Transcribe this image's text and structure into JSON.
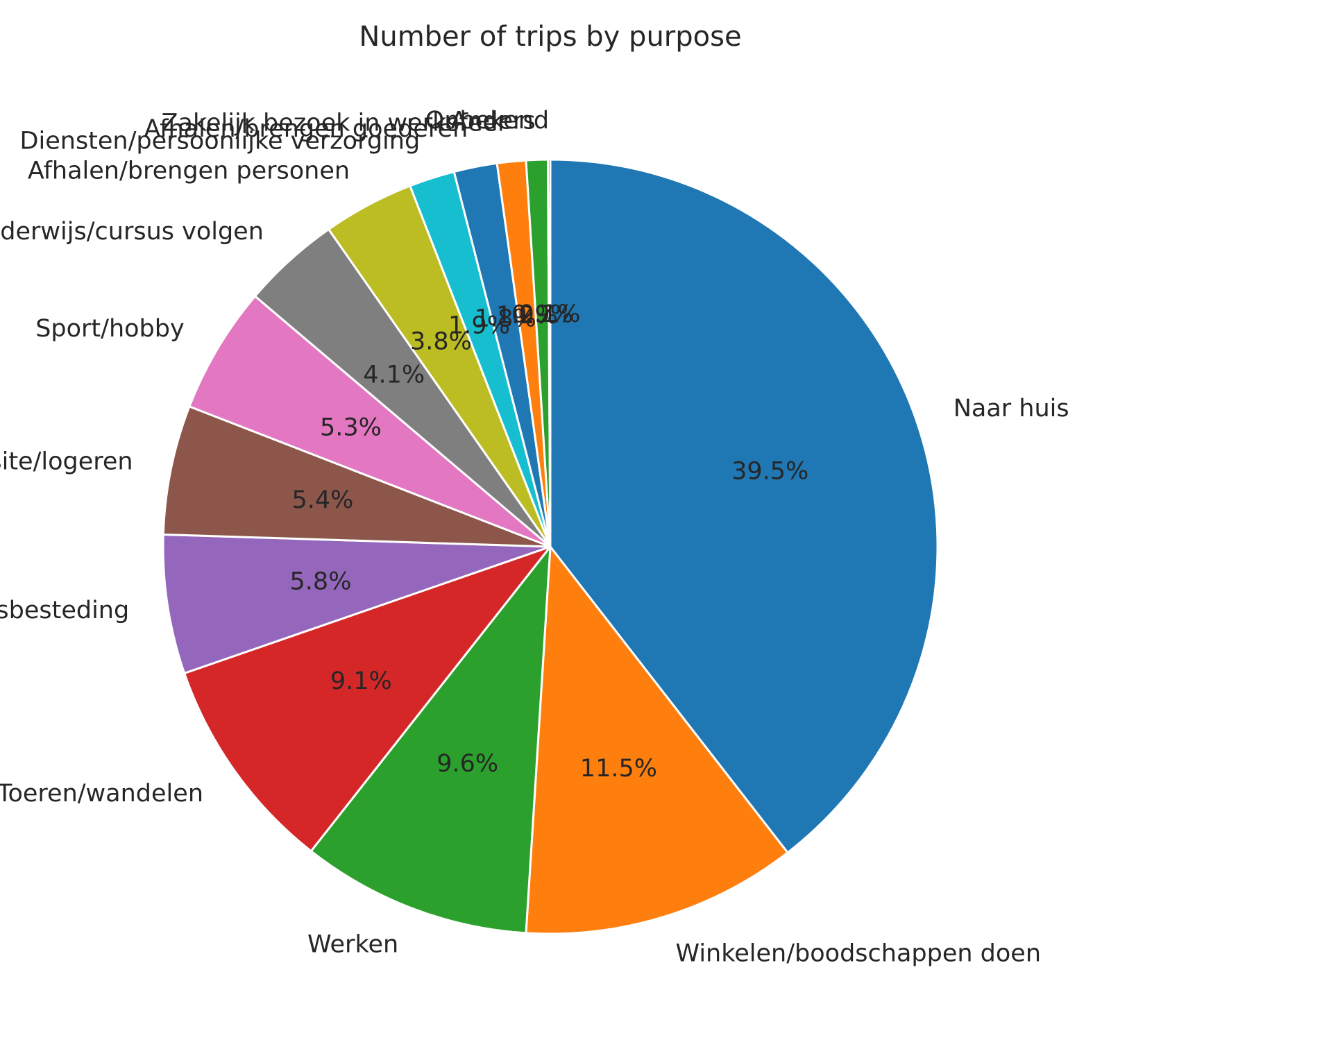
{
  "chart_data": {
    "type": "pie",
    "title": "Number of trips by purpose",
    "start_angle_deg": 90,
    "direction": "clockwise",
    "slices": [
      {
        "label": "Naar huis",
        "value": 39.5,
        "pct_text": "39.5%",
        "color": "#1f77b4"
      },
      {
        "label": "Winkelen/boodschappen doen",
        "value": 11.5,
        "pct_text": "11.5%",
        "color": "#ff7f0e"
      },
      {
        "label": "Werken",
        "value": 9.6,
        "pct_text": "9.6%",
        "color": "#2ca02c"
      },
      {
        "label": "Toeren/wandelen",
        "value": 9.1,
        "pct_text": "9.1%",
        "color": "#d62728"
      },
      {
        "label": "Overige vrijetijdsbesteding",
        "value": 5.8,
        "pct_text": "5.8%",
        "color": "#9467bd"
      },
      {
        "label": "Visite/logeren",
        "value": 5.4,
        "pct_text": "5.4%",
        "color": "#8c564b"
      },
      {
        "label": "Sport/hobby",
        "value": 5.3,
        "pct_text": "5.3%",
        "color": "#e377c2"
      },
      {
        "label": "Onderwijs/cursus volgen",
        "value": 4.1,
        "pct_text": "4.1%",
        "color": "#7f7f7f"
      },
      {
        "label": "Afhalen/brengen personen",
        "value": 3.8,
        "pct_text": "3.8%",
        "color": "#bcbd22"
      },
      {
        "label": "Diensten/persoonlijke verzorging",
        "value": 1.9,
        "pct_text": "1.9%",
        "color": "#17becf"
      },
      {
        "label": "Afhalen/brengen goederen",
        "value": 1.8,
        "pct_text": "1.8%",
        "color": "#1f77b4"
      },
      {
        "label": "Zakelijk bezoek in werksfeer",
        "value": 1.2,
        "pct_text": "1.2%",
        "color": "#ff7f0e"
      },
      {
        "label": "Anders",
        "value": 0.9,
        "pct_text": "0.9%",
        "color": "#2ca02c"
      },
      {
        "label": "Onbekend",
        "value": 0.1,
        "pct_text": "0.1%",
        "color": "#d62728"
      }
    ]
  }
}
